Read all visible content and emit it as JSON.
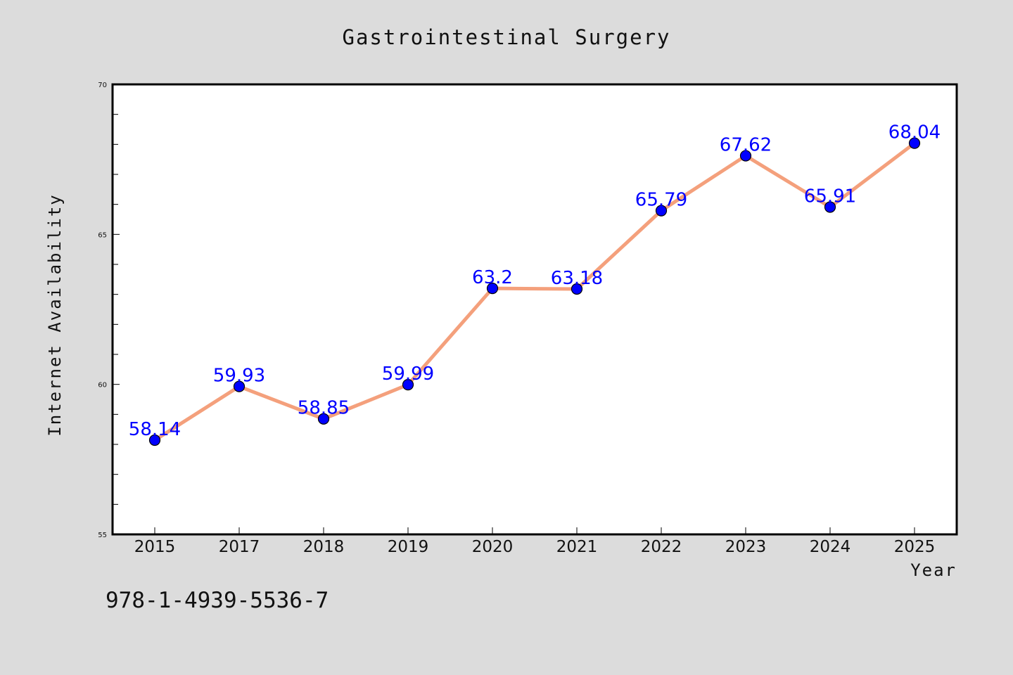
{
  "colors": {
    "background": "#dcdcdc",
    "plot_background": "#ffffff",
    "line": "#f4a07c",
    "marker": "#0000ff",
    "data_label": "#0000ff"
  },
  "footer": {
    "code": "978-1-4939-5536-7"
  },
  "chart_data": {
    "type": "line",
    "title": "Gastrointestinal Surgery",
    "xlabel": "Year",
    "ylabel": "Internet Availability",
    "categories": [
      "2015",
      "2017",
      "2018",
      "2019",
      "2020",
      "2021",
      "2022",
      "2023",
      "2024",
      "2025"
    ],
    "series": [
      {
        "values": [
          58.14,
          59.93,
          58.85,
          59.99,
          63.2,
          63.18,
          65.79,
          67.62,
          65.91,
          68.04
        ],
        "labels": [
          "58.14",
          "59.93",
          "58.85",
          "59.99",
          "63.2",
          "63.18",
          "65.79",
          "67.62",
          "65.91",
          "68.04"
        ]
      }
    ],
    "ylim": [
      55,
      70
    ],
    "yticks": [
      55,
      60,
      65,
      70
    ],
    "grid": false,
    "markers": true
  }
}
